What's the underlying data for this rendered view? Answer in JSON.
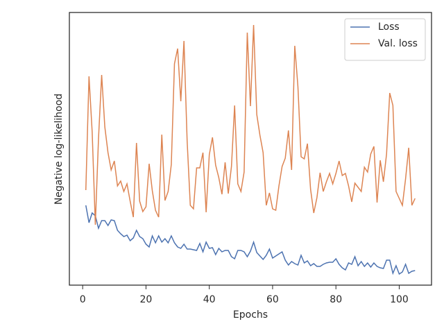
{
  "chart_data": {
    "type": "line",
    "xlabel": "Epochs",
    "ylabel": "Negative log-likelihood",
    "x": [
      1,
      2,
      3,
      4,
      5,
      6,
      7,
      8,
      9,
      10,
      11,
      12,
      13,
      14,
      15,
      16,
      17,
      18,
      19,
      20,
      21,
      22,
      23,
      24,
      25,
      26,
      27,
      28,
      29,
      30,
      31,
      32,
      33,
      34,
      35,
      36,
      37,
      38,
      39,
      40,
      41,
      42,
      43,
      44,
      45,
      46,
      47,
      48,
      49,
      50,
      51,
      52,
      53,
      54,
      55,
      56,
      57,
      58,
      59,
      60,
      61,
      62,
      63,
      64,
      65,
      66,
      67,
      68,
      69,
      70,
      71,
      72,
      73,
      74,
      75,
      76,
      77,
      78,
      79,
      80,
      81,
      82,
      83,
      84,
      85,
      86,
      87,
      88,
      89,
      90,
      91,
      92,
      93,
      94,
      95,
      96,
      97,
      98,
      99,
      100,
      101,
      102,
      103,
      104,
      105
    ],
    "series": [
      {
        "name": "Loss",
        "color": "#4c72b0",
        "values": [
          115,
          90,
          104,
          100,
          82,
          93,
          93,
          86,
          94,
          93,
          79,
          74,
          70,
          72,
          64,
          68,
          79,
          70,
          67,
          59,
          55,
          71,
          61,
          71,
          62,
          67,
          61,
          71,
          61,
          55,
          53,
          59,
          52,
          52,
          51,
          50,
          60,
          48,
          62,
          53,
          54,
          44,
          53,
          48,
          50,
          50,
          41,
          38,
          50,
          50,
          48,
          41,
          49,
          62,
          47,
          42,
          37,
          43,
          52,
          39,
          42,
          45,
          48,
          36,
          29,
          34,
          31,
          29,
          43,
          32,
          35,
          28,
          31,
          27,
          27,
          30,
          32,
          33,
          33,
          38,
          30,
          25,
          22,
          32,
          30,
          41,
          28,
          34,
          27,
          32,
          26,
          32,
          27,
          25,
          24,
          36,
          36,
          17,
          28,
          16,
          19,
          30,
          17,
          20,
          21
        ]
      },
      {
        "name": "Val. loss",
        "color": "#dd8452",
        "values": [
          137,
          301,
          221,
          87,
          211,
          303,
          228,
          191,
          166,
          179,
          143,
          150,
          135,
          146,
          121,
          98,
          205,
          121,
          106,
          113,
          175,
          136,
          108,
          98,
          217,
          122,
          135,
          174,
          319,
          341,
          265,
          352,
          208,
          115,
          110,
          169,
          169,
          191,
          105,
          188,
          213,
          173,
          155,
          131,
          177,
          132,
          171,
          259,
          146,
          135,
          163,
          364,
          258,
          375,
          246,
          216,
          191,
          115,
          133,
          110,
          108,
          143,
          171,
          183,
          223,
          166,
          345,
          286,
          185,
          182,
          204,
          138,
          104,
          126,
          162,
          135,
          149,
          161,
          146,
          161,
          179,
          158,
          161,
          143,
          120,
          147,
          141,
          135,
          170,
          163,
          189,
          200,
          119,
          180,
          149,
          189,
          277,
          259,
          135,
          125,
          115,
          153,
          198,
          115,
          125
        ]
      }
    ],
    "xlim": [
      -4.2,
      110.2
    ],
    "xticks": [
      0,
      20,
      40,
      60,
      80,
      100
    ],
    "ylim": [
      0,
      393
    ],
    "yticks": [],
    "legend": "upper right"
  }
}
